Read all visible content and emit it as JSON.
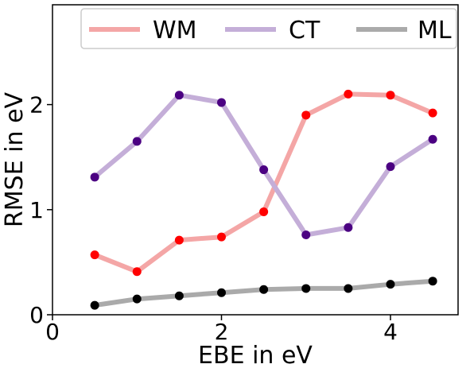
{
  "chart_data": {
    "type": "line",
    "title": "",
    "xlabel": "EBE in eV",
    "ylabel": "RMSE in eV",
    "xlim": [
      0,
      4.8
    ],
    "ylim": [
      0,
      2.95
    ],
    "x_ticks": [
      0,
      2,
      4
    ],
    "y_ticks": [
      0,
      1,
      2
    ],
    "x_tick_labels": [
      "0",
      "2",
      "4"
    ],
    "y_tick_labels": [
      "0",
      "1",
      "2"
    ],
    "grid": false,
    "legend_position": "top",
    "x": [
      0.5,
      1.0,
      1.5,
      2.0,
      2.5,
      3.0,
      3.5,
      4.0,
      4.5
    ],
    "series": [
      {
        "name": "WM",
        "values": [
          0.57,
          0.41,
          0.71,
          0.74,
          0.98,
          1.9,
          2.1,
          2.09,
          1.92
        ],
        "line_color": "#f4a6a6",
        "marker_color": "#ff0000"
      },
      {
        "name": "CT",
        "values": [
          1.31,
          1.65,
          2.09,
          2.02,
          1.38,
          0.76,
          0.83,
          1.41,
          1.67
        ],
        "line_color": "#c4aed8",
        "marker_color": "#4b0082"
      },
      {
        "name": "ML",
        "values": [
          0.09,
          0.15,
          0.18,
          0.21,
          0.24,
          0.25,
          0.25,
          0.29,
          0.32
        ],
        "line_color": "#aaaaaa",
        "marker_color": "#000000"
      }
    ]
  }
}
